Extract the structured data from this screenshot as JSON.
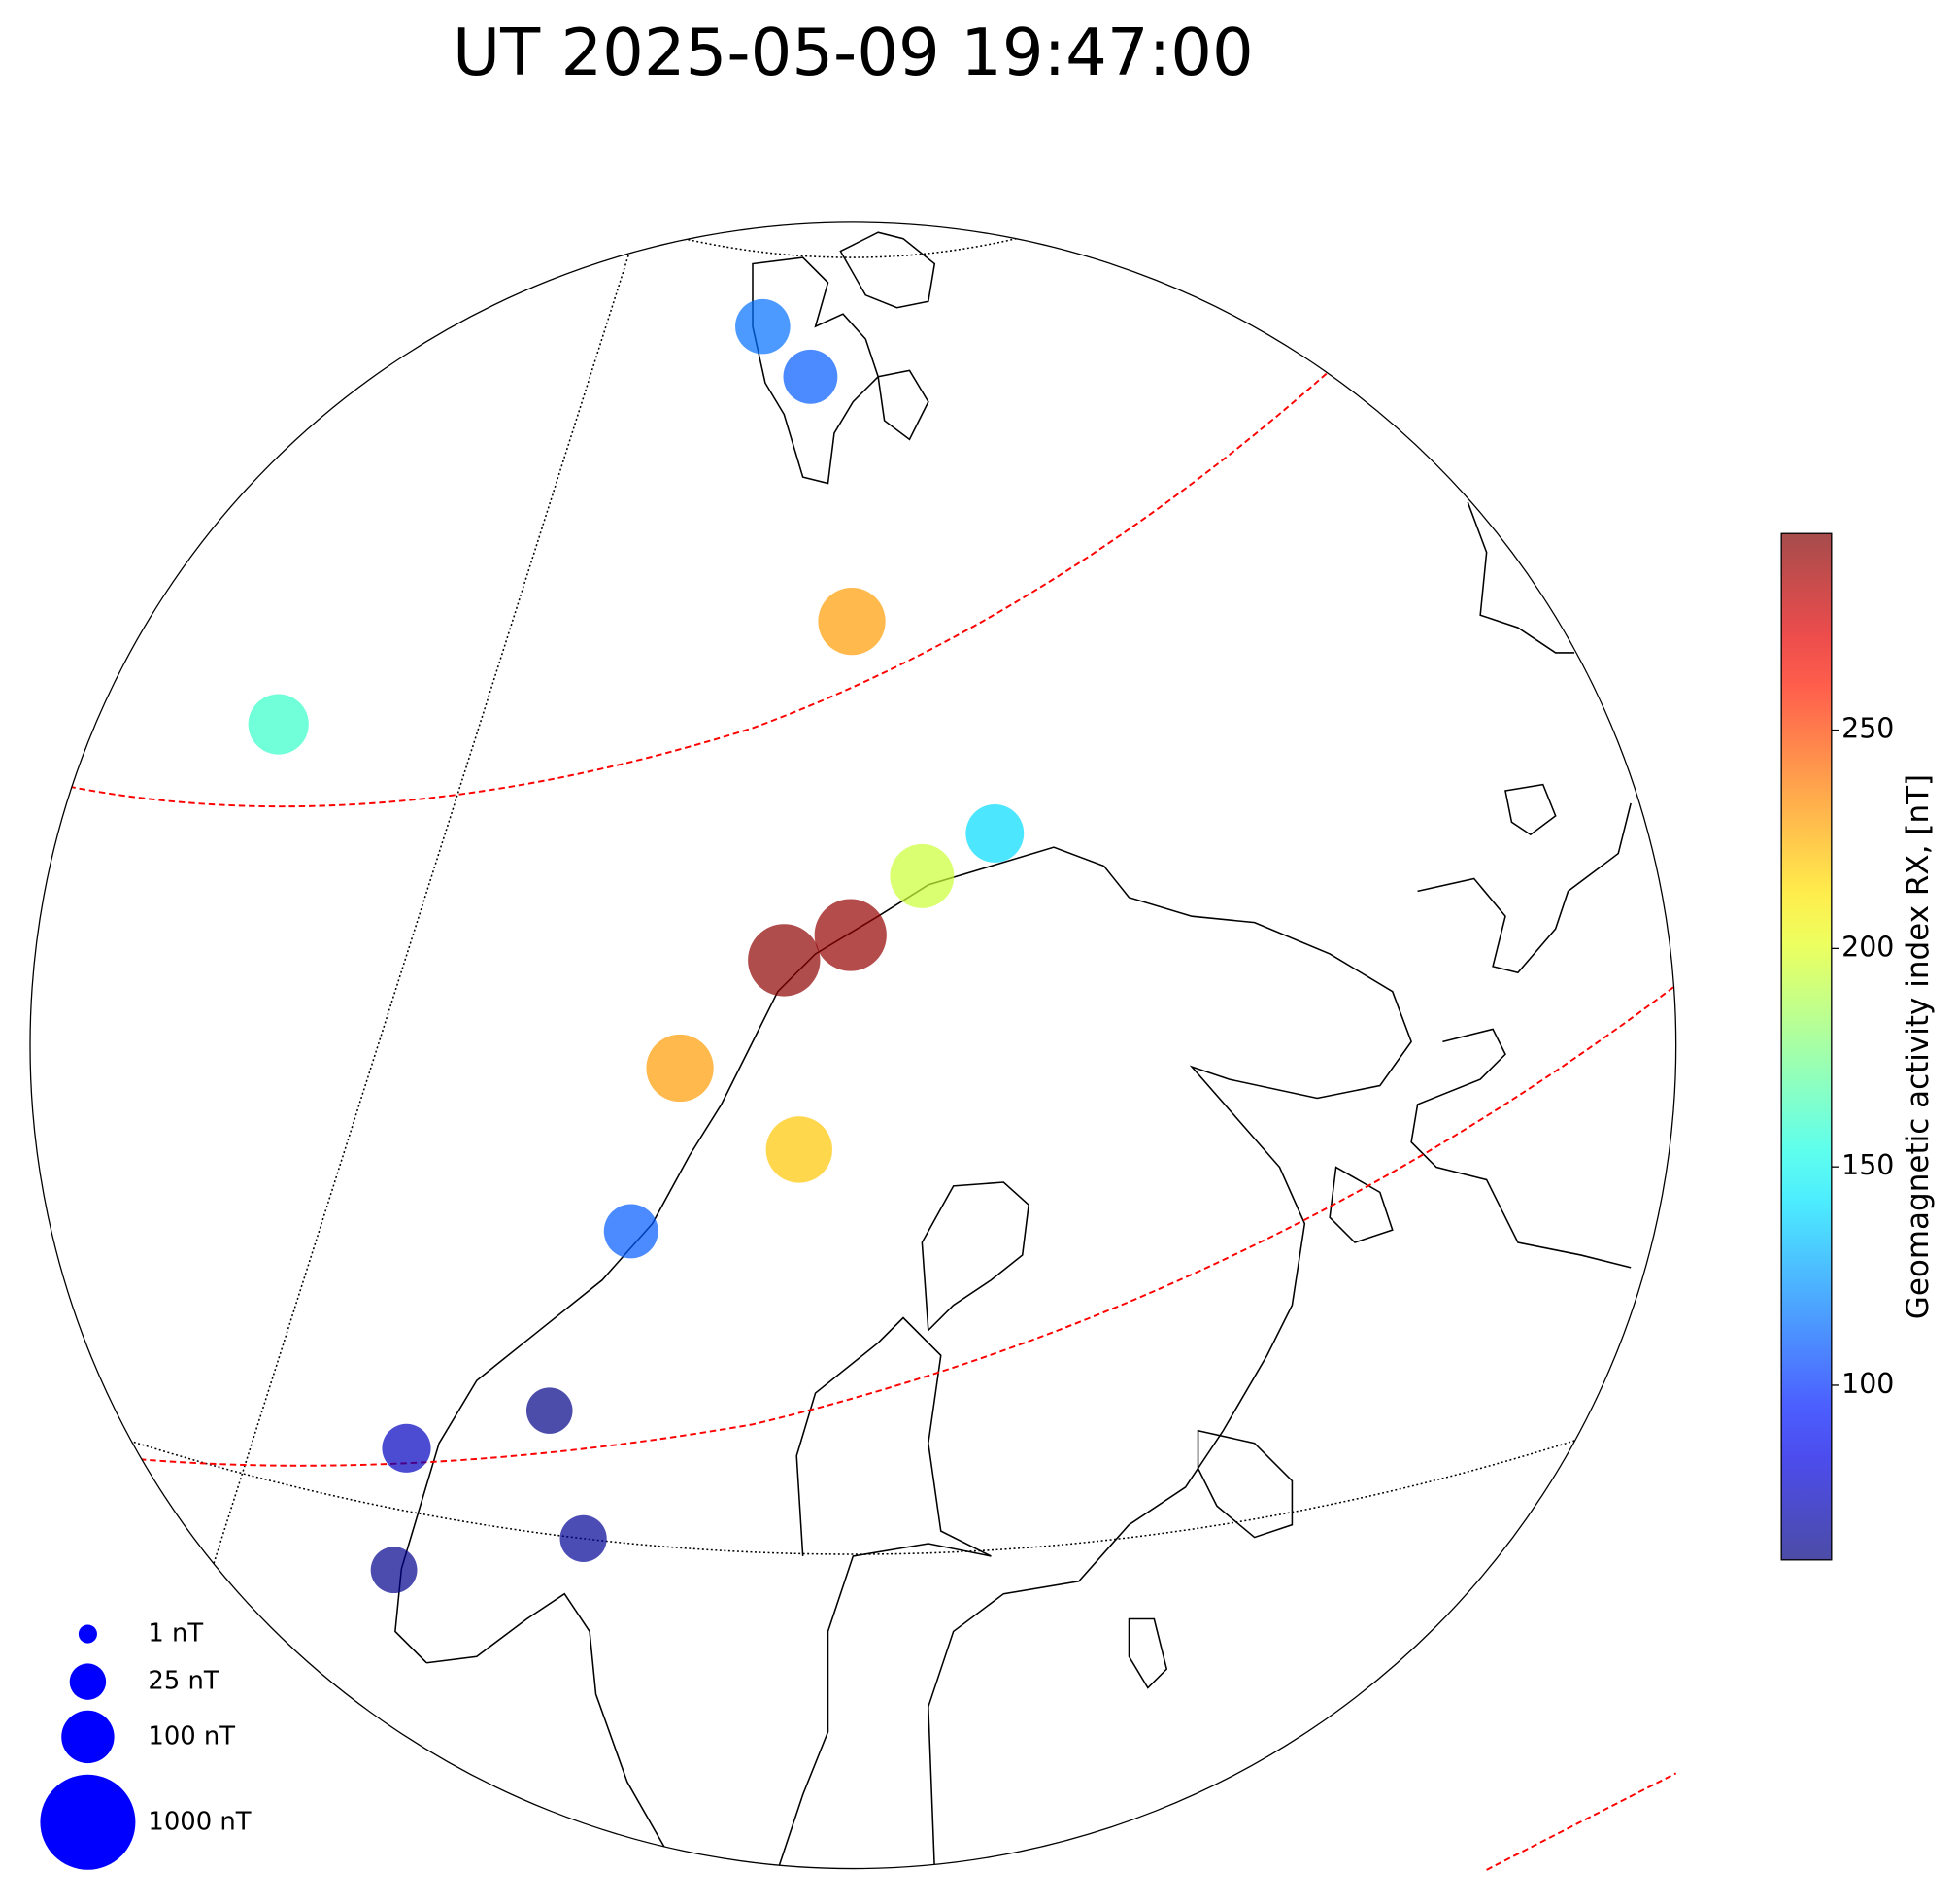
{
  "chart_data": {
    "type": "scatter",
    "title": "UT 2025-05-09 19:47:00",
    "colorbar_label": "Geomagnetic activity index RX, [nT]",
    "colormap": "jet",
    "clim": [
      60,
      295
    ],
    "cticks": [
      100,
      150,
      200,
      250
    ],
    "values": [
      115,
      110,
      230,
      160,
      140,
      195,
      290,
      292,
      230,
      220,
      110,
      62,
      75,
      65,
      63
    ],
    "size_legend": [
      {
        "value": 1,
        "label": "1 nT"
      },
      {
        "value": 25,
        "label": "25 nT"
      },
      {
        "value": 100,
        "label": "100 nT"
      },
      {
        "value": 1000,
        "label": "1000 nT"
      }
    ],
    "size_legend_color": "#0000ff"
  }
}
